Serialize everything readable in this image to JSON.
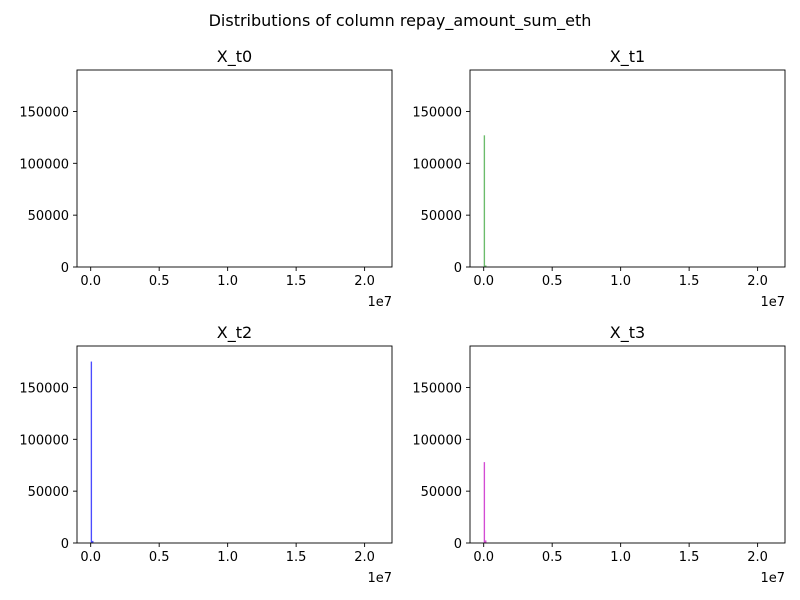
{
  "figure": {
    "suptitle": "Distributions of column repay_amount_sum_eth"
  },
  "chart_data": [
    {
      "type": "bar",
      "title": "X_t0",
      "color": "#ff0000",
      "xlim": [
        -1000000,
        22000000
      ],
      "ylim": [
        0,
        190000
      ],
      "x_offset_label": "1e7",
      "x_ticks": [
        0,
        5000000,
        10000000,
        15000000,
        20000000
      ],
      "x_tick_labels": [
        "0.0",
        "0.5",
        "1.0",
        "1.5",
        "2.0"
      ],
      "y_ticks": [
        0,
        50000,
        100000,
        150000
      ],
      "y_tick_labels": [
        "0",
        "50000",
        "100000",
        "150000"
      ],
      "bins": []
    },
    {
      "type": "bar",
      "title": "X_t1",
      "color": "#2ca02c",
      "xlim": [
        -1000000,
        22000000
      ],
      "ylim": [
        0,
        190000
      ],
      "x_offset_label": "1e7",
      "x_ticks": [
        0,
        5000000,
        10000000,
        15000000,
        20000000
      ],
      "x_tick_labels": [
        "0.0",
        "0.5",
        "1.0",
        "1.5",
        "2.0"
      ],
      "y_ticks": [
        0,
        50000,
        100000,
        150000
      ],
      "y_tick_labels": [
        "0",
        "50000",
        "100000",
        "150000"
      ],
      "bins": [
        {
          "x0": 0,
          "x1": 100000,
          "count": 127000
        },
        {
          "x0": 100000,
          "x1": 200000,
          "count": 1500
        }
      ]
    },
    {
      "type": "bar",
      "title": "X_t2",
      "color": "#0000ff",
      "xlim": [
        -1000000,
        22000000
      ],
      "ylim": [
        0,
        190000
      ],
      "x_offset_label": "1e7",
      "x_ticks": [
        0,
        5000000,
        10000000,
        15000000,
        20000000
      ],
      "x_tick_labels": [
        "0.0",
        "0.5",
        "1.0",
        "1.5",
        "2.0"
      ],
      "y_ticks": [
        0,
        50000,
        100000,
        150000
      ],
      "y_tick_labels": [
        "0",
        "50000",
        "100000",
        "150000"
      ],
      "bins": [
        {
          "x0": 0,
          "x1": 100000,
          "count": 175000
        },
        {
          "x0": 100000,
          "x1": 200000,
          "count": 2000
        }
      ]
    },
    {
      "type": "bar",
      "title": "X_t3",
      "color": "#c000c0",
      "xlim": [
        -1000000,
        22000000
      ],
      "ylim": [
        0,
        190000
      ],
      "x_offset_label": "1e7",
      "x_ticks": [
        0,
        5000000,
        10000000,
        15000000,
        20000000
      ],
      "x_tick_labels": [
        "0.0",
        "0.5",
        "1.0",
        "1.5",
        "2.0"
      ],
      "y_ticks": [
        0,
        50000,
        100000,
        150000
      ],
      "y_tick_labels": [
        "0",
        "50000",
        "100000",
        "150000"
      ],
      "bins": [
        {
          "x0": 0,
          "x1": 100000,
          "count": 78000
        },
        {
          "x0": 100000,
          "x1": 200000,
          "count": 2500
        }
      ]
    }
  ]
}
